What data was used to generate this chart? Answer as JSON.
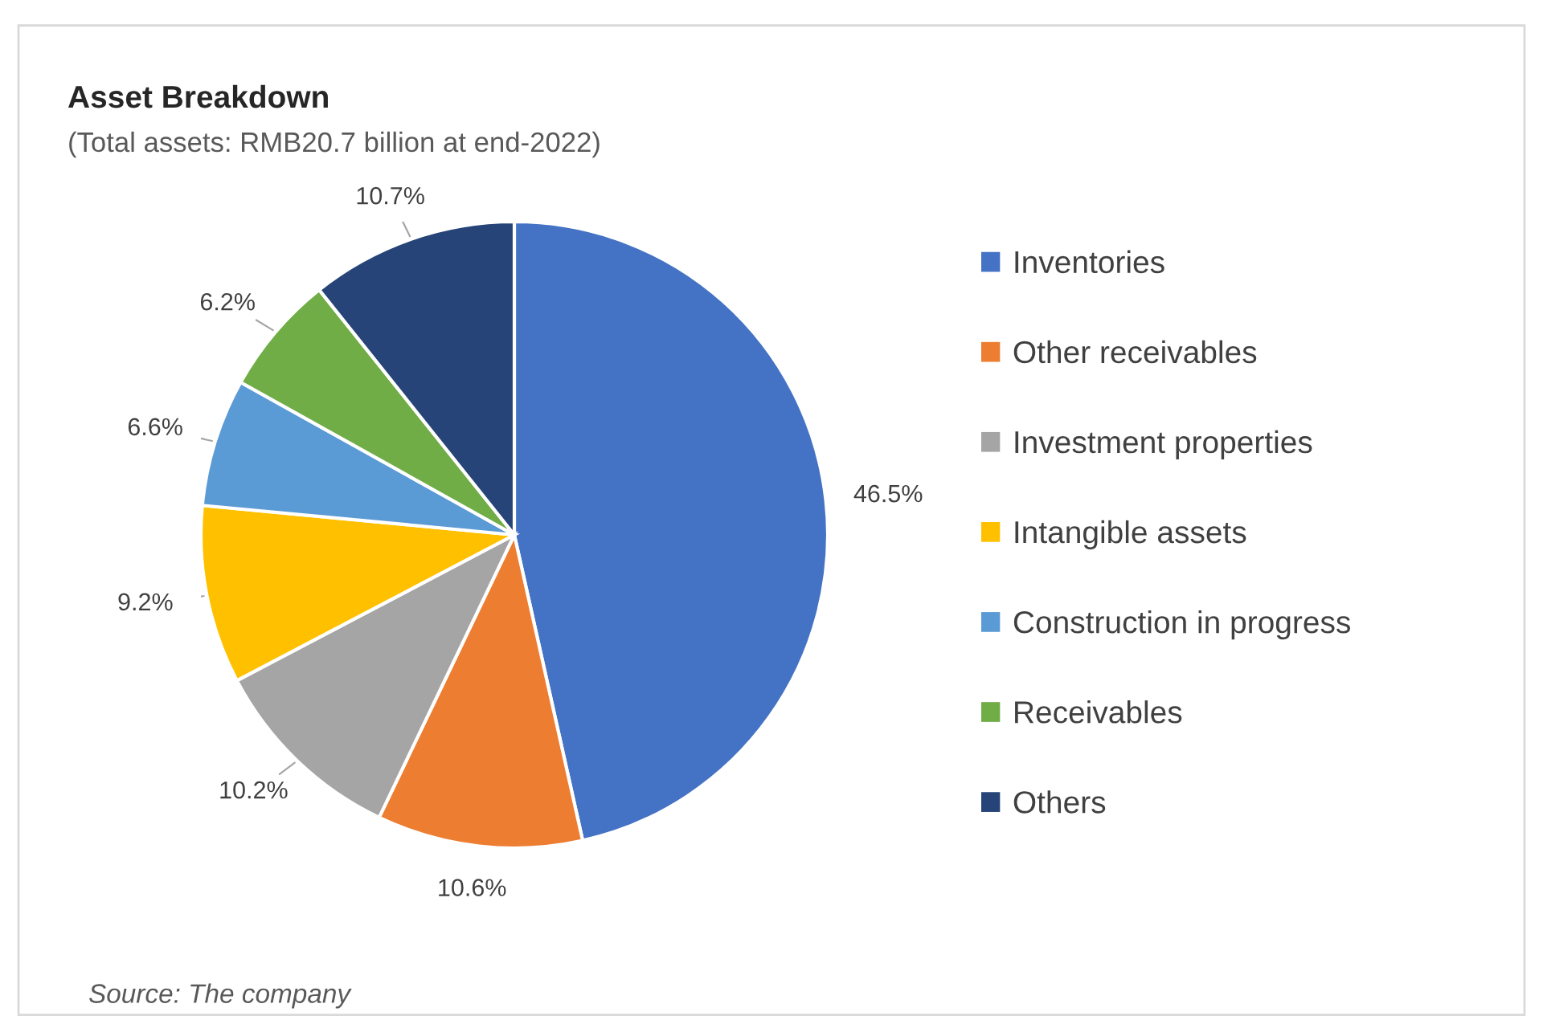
{
  "chart_data": {
    "type": "pie",
    "title": "Asset Breakdown",
    "subtitle": "(Total assets: RMB20.7 billion at end-2022)",
    "categories": [
      "Inventories",
      "Other receivables",
      "Investment properties",
      "Intangible assets",
      "Construction in progress",
      "Receivables",
      "Others"
    ],
    "values": [
      46.5,
      10.6,
      10.2,
      9.2,
      6.6,
      6.2,
      10.7
    ],
    "value_labels": [
      "46.5%",
      "10.6%",
      "10.2%",
      "9.2%",
      "6.6%",
      "6.2%",
      "10.7%"
    ],
    "colors": [
      "#4472c4",
      "#ed7d31",
      "#a5a5a5",
      "#ffc000",
      "#5b9bd5",
      "#70ad47",
      "#264478"
    ],
    "legend": "right",
    "annotations": [
      "Source: The company"
    ]
  }
}
